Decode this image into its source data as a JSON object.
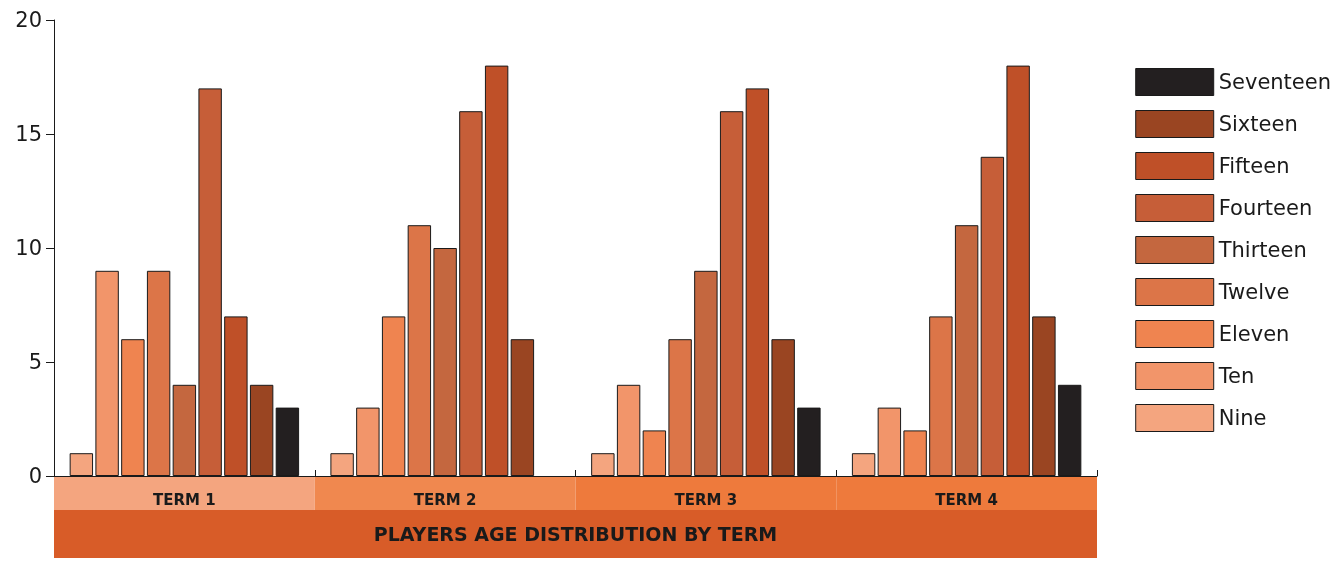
{
  "chart_data": {
    "type": "bar",
    "title": "PLAYERS AGE DISTRIBUTION BY TERM",
    "categories": [
      "TERM 1",
      "TERM 2",
      "TERM 3",
      "TERM 4"
    ],
    "series": [
      {
        "name": "Nine",
        "color": "#f4a57f",
        "values": [
          1,
          1,
          1,
          1
        ]
      },
      {
        "name": "Ten",
        "color": "#f2956a",
        "values": [
          9,
          3,
          4,
          3
        ]
      },
      {
        "name": "Eleven",
        "color": "#ef8450",
        "values": [
          6,
          7,
          2,
          2
        ]
      },
      {
        "name": "Twelve",
        "color": "#dc7548",
        "values": [
          9,
          11,
          6,
          7
        ]
      },
      {
        "name": "Thirteen",
        "color": "#c4673f",
        "values": [
          4,
          10,
          9,
          11
        ]
      },
      {
        "name": "Fourteen",
        "color": "#c65e38",
        "values": [
          17,
          16,
          16,
          14
        ]
      },
      {
        "name": "Fifteen",
        "color": "#bf5028",
        "values": [
          7,
          18,
          17,
          18
        ]
      },
      {
        "name": "Sixteen",
        "color": "#9a4522",
        "values": [
          4,
          6,
          6,
          7
        ]
      },
      {
        "name": "Seventeen",
        "color": "#231f20",
        "values": [
          3,
          null,
          3,
          4
        ]
      }
    ],
    "ylim": [
      0,
      20
    ],
    "yticks": [
      0,
      5,
      10,
      15,
      20
    ],
    "grid": false,
    "legend": "right"
  }
}
